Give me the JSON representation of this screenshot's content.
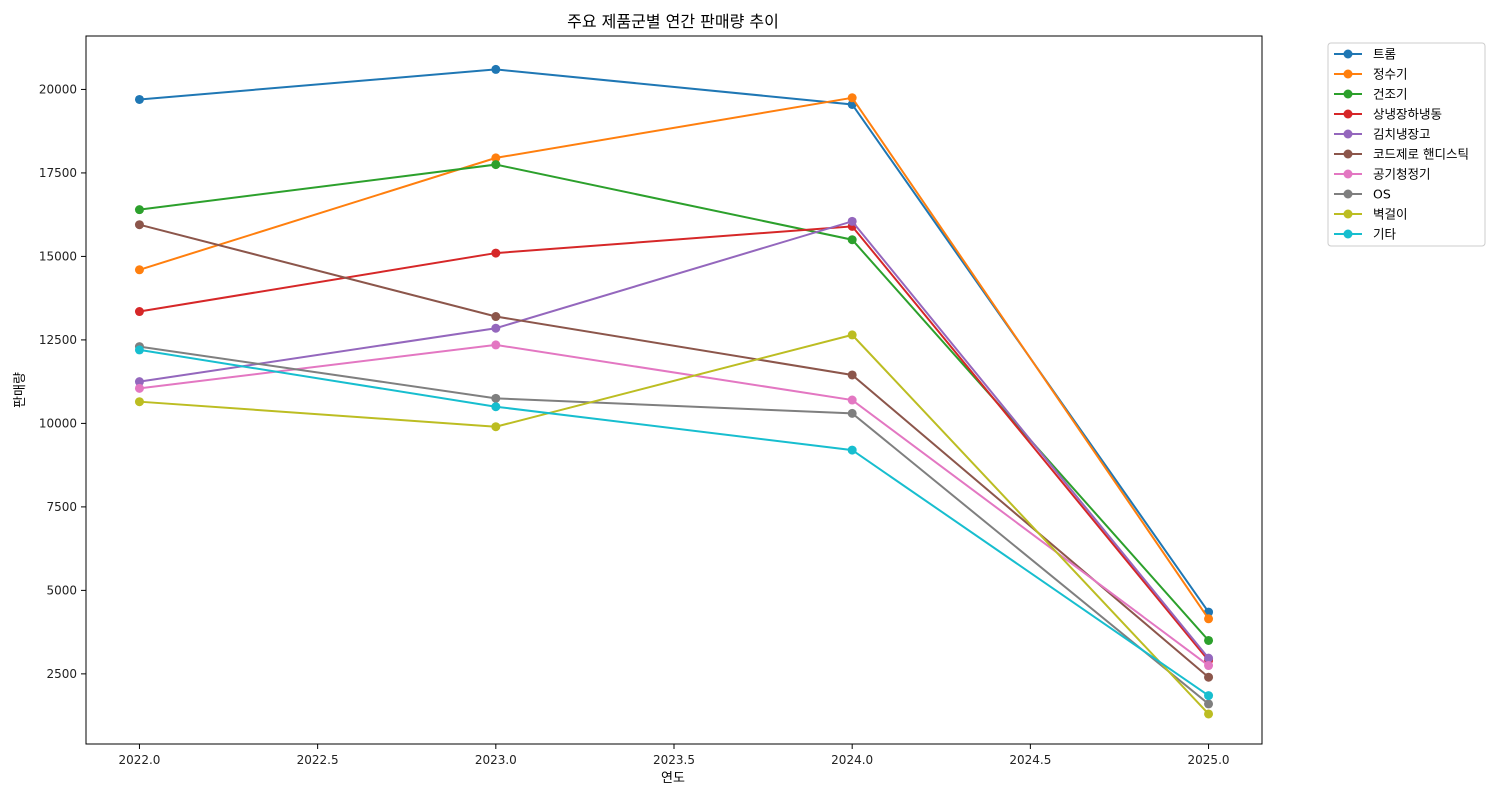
{
  "chart_data": {
    "type": "line",
    "title": "주요 제품군별 연간 판매량 추이",
    "xlabel": "연도",
    "ylabel": "판매량",
    "x": [
      2022,
      2023,
      2024,
      2025
    ],
    "xlim": [
      2021.85,
      2025.15
    ],
    "ylim": [
      400,
      21600
    ],
    "xticks": [
      "2022.0",
      "2022.5",
      "2023.0",
      "2023.5",
      "2024.0",
      "2024.5",
      "2025.0"
    ],
    "xtick_values": [
      2022.0,
      2022.5,
      2023.0,
      2023.5,
      2024.0,
      2024.5,
      2025.0
    ],
    "yticks": [
      "2500",
      "5000",
      "7500",
      "10000",
      "12500",
      "15000",
      "17500",
      "20000"
    ],
    "ytick_values": [
      2500,
      5000,
      7500,
      10000,
      12500,
      15000,
      17500,
      20000
    ],
    "grid": false,
    "legend_position": "outside-top-right",
    "series": [
      {
        "name": "트롬",
        "color": "#1f77b4",
        "values": [
          19700,
          20600,
          19550,
          4350
        ]
      },
      {
        "name": "정수기",
        "color": "#ff7f0e",
        "values": [
          14600,
          17950,
          19750,
          4150
        ]
      },
      {
        "name": "건조기",
        "color": "#2ca02c",
        "values": [
          16400,
          17750,
          15500,
          3500
        ]
      },
      {
        "name": "상냉장하냉동",
        "color": "#d62728",
        "values": [
          13350,
          15100,
          15900,
          2900
        ]
      },
      {
        "name": "김치냉장고",
        "color": "#9467bd",
        "values": [
          11250,
          12850,
          16050,
          2970
        ]
      },
      {
        "name": "코드제로 핸디스틱",
        "color": "#8c564b",
        "values": [
          15950,
          13200,
          11450,
          2400
        ]
      },
      {
        "name": "공기청정기",
        "color": "#e377c2",
        "values": [
          11050,
          12350,
          10700,
          2750
        ]
      },
      {
        "name": "OS",
        "color": "#7f7f7f",
        "values": [
          12300,
          10750,
          10300,
          1600
        ]
      },
      {
        "name": "벽걸이",
        "color": "#bcbd22",
        "values": [
          10650,
          9900,
          12650,
          1300
        ]
      },
      {
        "name": "기타",
        "color": "#17becf",
        "values": [
          12200,
          10500,
          9200,
          1850
        ]
      }
    ]
  }
}
